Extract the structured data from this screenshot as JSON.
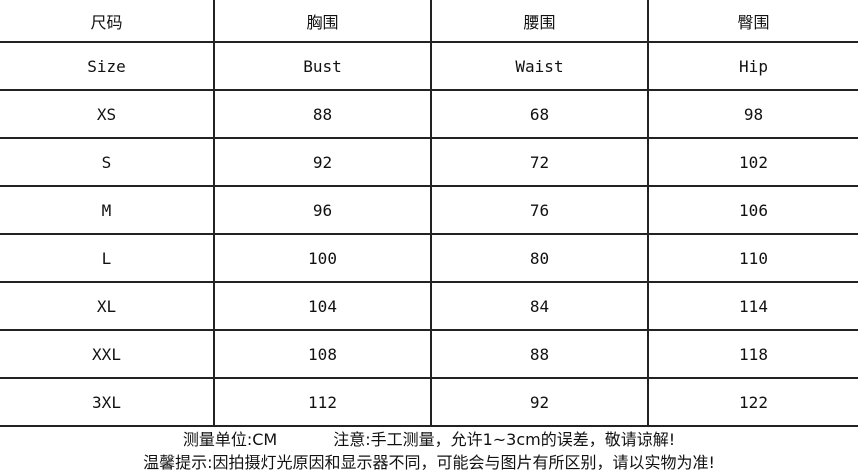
{
  "table": {
    "header_cn": [
      "尺码",
      "胸围",
      "腰围",
      "臀围"
    ],
    "header_en": [
      "Size",
      "Bust",
      "Waist",
      "Hip"
    ],
    "rows": [
      [
        "XS",
        "88",
        "68",
        "98"
      ],
      [
        "S",
        "92",
        "72",
        "102"
      ],
      [
        "M",
        "96",
        "76",
        "106"
      ],
      [
        "L",
        "100",
        "80",
        "110"
      ],
      [
        "XL",
        "104",
        "84",
        "114"
      ],
      [
        "XXL",
        "108",
        "88",
        "118"
      ],
      [
        "3XL",
        "112",
        "92",
        "122"
      ]
    ]
  },
  "notes": {
    "unit": "测量单位:CM",
    "tolerance": "注意:手工测量，允许1~3cm的误差，敬请谅解!",
    "reminder": "温馨提示:因拍摄灯光原因和显示器不同，可能会与图片有所区别，请以实物为准!"
  }
}
